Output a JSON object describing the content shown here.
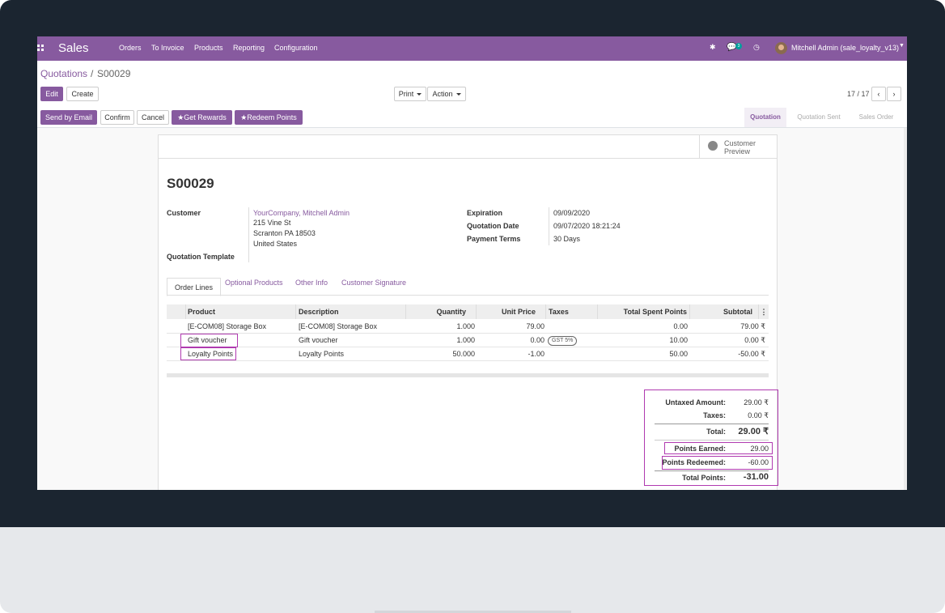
{
  "navbar": {
    "app_name": "Sales",
    "menu": [
      "Orders",
      "To Invoice",
      "Products",
      "Reporting",
      "Configuration"
    ],
    "messages_count": "3",
    "user": "Mitchell Admin (sale_loyalty_v13)"
  },
  "breadcrumb": {
    "parent": "Quotations",
    "separator": "/",
    "current": "S00029"
  },
  "toolbar": {
    "edit": "Edit",
    "create": "Create",
    "print": "Print",
    "action": "Action"
  },
  "pager": {
    "value": "17 / 17"
  },
  "status_buttons": {
    "send_email": "Send by Email",
    "confirm": "Confirm",
    "cancel": "Cancel",
    "get_rewards": "Get Rewards",
    "redeem_points": "Redeem Points"
  },
  "stages": {
    "quotation": "Quotation",
    "sent": "Quotation Sent",
    "order": "Sales Order"
  },
  "customer_preview": {
    "line1": "Customer",
    "line2": "Preview"
  },
  "order": {
    "name": "S00029",
    "customer_label": "Customer",
    "customer_name": "YourCompany, Mitchell Admin",
    "address1": "215 Vine St",
    "address2": "Scranton PA 18503",
    "address3": "United States",
    "template_label": "Quotation Template",
    "expiration_label": "Expiration",
    "expiration": "09/09/2020",
    "date_label": "Quotation Date",
    "date": "09/07/2020 18:21:24",
    "terms_label": "Payment Terms",
    "terms": "30 Days"
  },
  "tabs": [
    "Order Lines",
    "Optional Products",
    "Other Info",
    "Customer Signature"
  ],
  "table": {
    "headers": {
      "product": "Product",
      "description": "Description",
      "quantity": "Quantity",
      "unit_price": "Unit Price",
      "taxes": "Taxes",
      "points": "Total Spent Points",
      "subtotal": "Subtotal"
    },
    "rows": [
      {
        "product": "[E-COM08] Storage Box",
        "description": "[E-COM08] Storage Box",
        "quantity": "1.000",
        "unit_price": "79.00",
        "taxes": "",
        "points": "0.00",
        "subtotal": "79.00 ₹"
      },
      {
        "product": "Gift voucher",
        "description": "Gift voucher",
        "quantity": "1.000",
        "unit_price": "0.00",
        "taxes": "GST 5%",
        "points": "10.00",
        "subtotal": "0.00 ₹"
      },
      {
        "product": "Loyalty Points",
        "description": "Loyalty Points",
        "quantity": "50.000",
        "unit_price": "-1.00",
        "taxes": "",
        "points": "50.00",
        "subtotal": "-50.00 ₹"
      }
    ]
  },
  "totals": {
    "untaxed_label": "Untaxed Amount:",
    "untaxed": "29.00 ₹",
    "taxes_label": "Taxes:",
    "taxes": "0.00 ₹",
    "total_label": "Total:",
    "total": "29.00 ₹",
    "earned_label": "Points Earned:",
    "earned": "29.00",
    "redeemed_label": "Points Redeemed:",
    "redeemed": "-60.00",
    "total_points_label": "Total Points:",
    "total_points": "-31.00"
  },
  "colors": {
    "brand": "#875a9f",
    "highlight": "#b03ab0"
  }
}
